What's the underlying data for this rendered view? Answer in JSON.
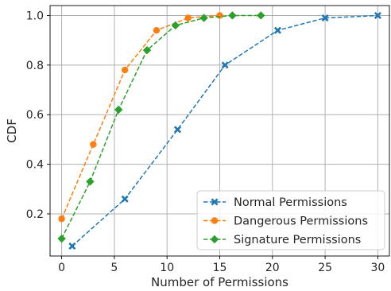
{
  "chart_data": {
    "type": "line",
    "title": "",
    "xlabel": "Number of Permissions",
    "ylabel": "CDF",
    "xlim": [
      -1.1,
      31.1
    ],
    "ylim": [
      0.03,
      1.04
    ],
    "xticks": [
      0,
      5,
      10,
      15,
      20,
      25,
      30
    ],
    "yticks": [
      0.2,
      0.4,
      0.6,
      0.8,
      1.0
    ],
    "xtick_labels": [
      "0",
      "5",
      "10",
      "15",
      "20",
      "25",
      "30"
    ],
    "ytick_labels": [
      "0.2",
      "0.4",
      "0.6",
      "0.8",
      "1.0"
    ],
    "grid": true,
    "legend_position": "bottom-right",
    "series": [
      {
        "name": "Normal Permissions",
        "color": "#1f77b4",
        "marker": "x",
        "x": [
          1,
          6,
          11,
          15.5,
          20.5,
          25,
          30
        ],
        "y": [
          0.07,
          0.26,
          0.54,
          0.8,
          0.94,
          0.99,
          1.0
        ]
      },
      {
        "name": "Dangerous Permissions",
        "color": "#ff7f0e",
        "marker": "circle",
        "x": [
          0,
          3,
          6,
          9,
          12,
          15
        ],
        "y": [
          0.18,
          0.48,
          0.78,
          0.94,
          0.99,
          1.0
        ]
      },
      {
        "name": "Signature Permissions",
        "color": "#2ca02c",
        "marker": "diamond",
        "x": [
          0,
          2.7,
          5.4,
          8.1,
          10.8,
          13.5,
          16.2,
          18.9
        ],
        "y": [
          0.1,
          0.33,
          0.62,
          0.86,
          0.96,
          0.99,
          1.0,
          1.0
        ]
      }
    ]
  }
}
